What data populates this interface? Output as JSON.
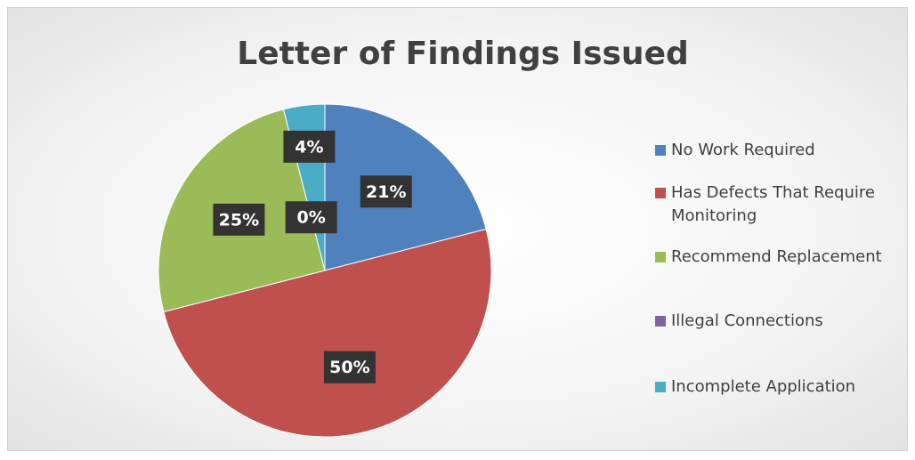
{
  "chart_data": {
    "type": "pie",
    "title": "Letter of Findings Issued",
    "categories": [
      "No Work Required",
      "Has Defects That Require Monitoring",
      "Recommend Replacement",
      "Illegal Connections",
      "Incomplete Application"
    ],
    "values": [
      21,
      50,
      25,
      0,
      4
    ],
    "value_labels": [
      "21%",
      "50%",
      "25%",
      "0%",
      "4%"
    ],
    "colors": [
      "#4f81bd",
      "#c0504d",
      "#9bbb59",
      "#8064a2",
      "#4bacc6"
    ],
    "legend": "right"
  }
}
